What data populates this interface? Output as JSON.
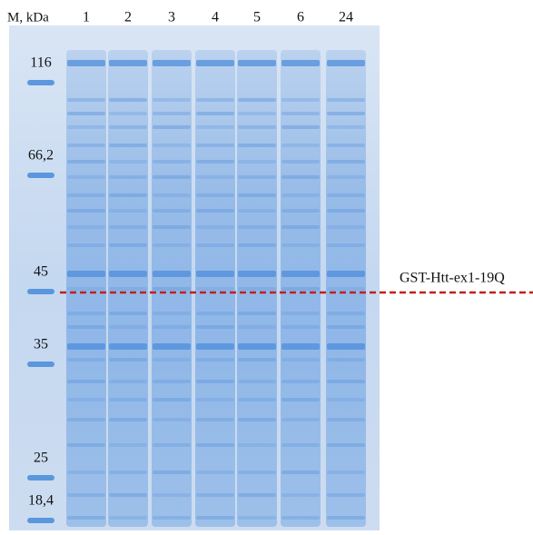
{
  "header": {
    "marker_label": "M, kDa"
  },
  "lanes": [
    "1",
    "2",
    "3",
    "4",
    "5",
    "6",
    "24"
  ],
  "markers": [
    "116",
    "66,2",
    "45",
    "35",
    "25",
    "18,4"
  ],
  "annotation": "GST-Htt-ex1-19Q"
}
